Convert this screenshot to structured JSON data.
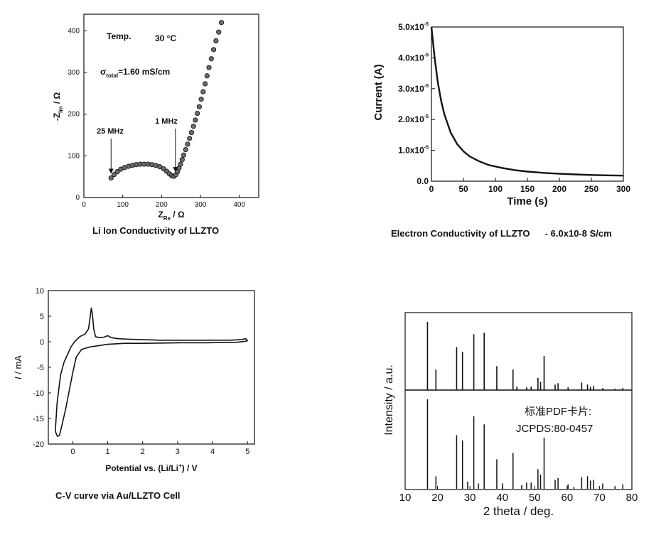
{
  "chart_data": [
    {
      "type": "scatter",
      "id": "nyquist",
      "title": "Li Ion Conductivity of LLZTO",
      "xlabel": "Z",
      "xlabel_sub": "Re",
      "xlabel_unit": " / Ω",
      "ylabel": "-Z",
      "ylabel_sub": "Im",
      "ylabel_unit": " / Ω",
      "xlim": [
        0,
        450
      ],
      "ylim": [
        0,
        440
      ],
      "xticks": [
        "0",
        "100",
        "200",
        "300",
        "400"
      ],
      "yticks": [
        "0",
        "100",
        "200",
        "300",
        "400"
      ],
      "annotations": {
        "temp_label": "Temp.",
        "temp_value": "30 °C",
        "sigma_symbol": "σ",
        "sigma_sub": "total",
        "sigma_value": "=1.60 mS/cm",
        "freq_high": "25 MHz",
        "freq_low": "1 MHz"
      },
      "points": [
        [
          70,
          47
        ],
        [
          78,
          55
        ],
        [
          86,
          62
        ],
        [
          95,
          68
        ],
        [
          105,
          72
        ],
        [
          115,
          75
        ],
        [
          125,
          77
        ],
        [
          135,
          79
        ],
        [
          145,
          80
        ],
        [
          155,
          80
        ],
        [
          165,
          80
        ],
        [
          175,
          79
        ],
        [
          185,
          77
        ],
        [
          195,
          74
        ],
        [
          205,
          69
        ],
        [
          213,
          63
        ],
        [
          220,
          57
        ],
        [
          226,
          52
        ],
        [
          232,
          51
        ],
        [
          237,
          55
        ],
        [
          241,
          62
        ],
        [
          245,
          71
        ],
        [
          249,
          80
        ],
        [
          253,
          91
        ],
        [
          257,
          102
        ],
        [
          262,
          115
        ],
        [
          267,
          128
        ],
        [
          272,
          142
        ],
        [
          277,
          156
        ],
        [
          282,
          171
        ],
        [
          287,
          186
        ],
        [
          292,
          202
        ],
        [
          297,
          218
        ],
        [
          302,
          236
        ],
        [
          307,
          254
        ],
        [
          312,
          273
        ],
        [
          317,
          292
        ],
        [
          322,
          312
        ],
        [
          328,
          333
        ],
        [
          334,
          355
        ],
        [
          340,
          376
        ],
        [
          347,
          397
        ],
        [
          354,
          420
        ]
      ]
    },
    {
      "type": "line",
      "id": "current-decay",
      "title": "Electron Conductivity of LLZTO",
      "title_value": "- 6.0x10-8 S/cm",
      "xlabel": "Time (s)",
      "ylabel": "Current (A)",
      "xlim": [
        0,
        300
      ],
      "ylim": [
        0,
        5e-05
      ],
      "xticks": [
        "0",
        "50",
        "100",
        "150",
        "200",
        "250",
        "300"
      ],
      "yticks": [
        {
          "mant": "0.0",
          "exp": ""
        },
        {
          "mant": "1.0x10",
          "exp": "-5"
        },
        {
          "mant": "2.0x10",
          "exp": "-5"
        },
        {
          "mant": "3.0x10",
          "exp": "-5"
        },
        {
          "mant": "4.0x10",
          "exp": "-5"
        },
        {
          "mant": "5.0x10",
          "exp": "-5"
        }
      ],
      "x": [
        0,
        2,
        5,
        10,
        15,
        20,
        30,
        40,
        50,
        60,
        75,
        90,
        110,
        130,
        150,
        175,
        200,
        225,
        250,
        275,
        300
      ],
      "y": [
        5e-05,
        4.6e-05,
        4e-05,
        3.2e-05,
        2.62e-05,
        2.18e-05,
        1.58e-05,
        1.21e-05,
        9.7e-06,
        8e-06,
        6.4e-06,
        5.2e-06,
        4.3e-06,
        3.6e-06,
        3.1e-06,
        2.7e-06,
        2.4e-06,
        2.2e-06,
        2e-06,
        1.9e-06,
        1.8e-06
      ]
    },
    {
      "type": "line",
      "id": "cv-curve",
      "title": "C-V curve via Au/LLZTO Cell",
      "xlabel_prefix": "Potential vs. (Li/Li",
      "xlabel_sup": "+",
      "xlabel_suffix": ") / V",
      "ylabel_italic": "I",
      "ylabel_rest": " / mA",
      "xlim": [
        -0.7,
        5.2
      ],
      "ylim": [
        -20,
        10
      ],
      "xticks": [
        "0",
        "1",
        "2",
        "3",
        "4",
        "5"
      ],
      "yticks": [
        "10",
        "5",
        "0",
        "-5",
        "-10",
        "-15",
        "-20"
      ],
      "x": [
        -0.5,
        -0.45,
        -0.35,
        -0.25,
        -0.15,
        -0.05,
        0.05,
        0.2,
        0.35,
        0.45,
        0.5,
        0.53,
        0.56,
        0.6,
        0.65,
        0.75,
        0.9,
        1.0,
        1.1,
        1.3,
        1.6,
        2.0,
        2.5,
        3.0,
        3.5,
        4.0,
        4.5,
        4.8,
        4.95,
        5.0,
        4.9,
        4.7,
        4.3,
        3.8,
        3.2,
        2.6,
        2.0,
        1.5,
        1.0,
        0.7,
        0.5,
        0.35,
        0.25,
        0.1,
        0.0,
        -0.1,
        -0.2,
        -0.3,
        -0.38,
        -0.44,
        -0.5
      ],
      "y": [
        -17.5,
        -12,
        -6.5,
        -4,
        -2.5,
        -1,
        0,
        1,
        1.5,
        2.5,
        5,
        6.6,
        5.5,
        2.5,
        1,
        0.8,
        0.9,
        1.2,
        0.8,
        0.6,
        0.5,
        0.4,
        0.3,
        0.3,
        0.3,
        0.3,
        0.3,
        0.4,
        0.6,
        0.2,
        0.05,
        -0.1,
        -0.15,
        -0.2,
        -0.2,
        -0.25,
        -0.3,
        -0.3,
        -0.5,
        -0.8,
        -1,
        -1.3,
        -1.5,
        -3,
        -6,
        -9.5,
        -13,
        -16,
        -18.3,
        -18.5,
        -17.5
      ]
    },
    {
      "type": "bar",
      "id": "xrd",
      "xlabel": "2 theta / deg.",
      "ylabel": "Intensity / a.u.",
      "xlim": [
        10,
        80
      ],
      "xticks": [
        "10",
        "20",
        "30",
        "40",
        "50",
        "60",
        "70",
        "80"
      ],
      "reference_label": "标准PDF卡片:",
      "reference_code": "JCPDS:80-0457",
      "series": [
        {
          "name": "measured",
          "x": [
            16.9,
            19.5,
            25.9,
            27.7,
            31.2,
            34.4,
            38.3,
            43.3,
            44.5,
            47.5,
            48.9,
            51.0,
            51.8,
            52.9,
            56.3,
            57.2,
            60.3,
            64.5,
            66.3,
            67.2,
            68.2,
            71.0,
            74.8,
            77.2
          ],
          "values": [
            1.0,
            0.3,
            0.63,
            0.56,
            0.82,
            0.84,
            0.35,
            0.3,
            0.05,
            0.04,
            0.05,
            0.18,
            0.12,
            0.5,
            0.08,
            0.1,
            0.04,
            0.11,
            0.08,
            0.05,
            0.06,
            0.03,
            0.02,
            0.03
          ]
        },
        {
          "name": "reference",
          "x": [
            16.9,
            19.5,
            25.9,
            27.7,
            29.3,
            31.2,
            32.6,
            34.4,
            38.3,
            40.1,
            43.3,
            46.0,
            47.5,
            48.9,
            51.0,
            51.8,
            52.9,
            56.3,
            57.2,
            60.3,
            62.1,
            64.5,
            66.3,
            67.2,
            68.2,
            71.0,
            74.8,
            77.2
          ],
          "values": [
            1.0,
            0.14,
            0.6,
            0.54,
            0.08,
            0.81,
            0.06,
            0.72,
            0.33,
            0.06,
            0.4,
            0.04,
            0.07,
            0.07,
            0.22,
            0.16,
            0.57,
            0.1,
            0.12,
            0.05,
            0.02,
            0.13,
            0.14,
            0.09,
            0.1,
            0.06,
            0.03,
            0.05
          ]
        }
      ]
    }
  ]
}
